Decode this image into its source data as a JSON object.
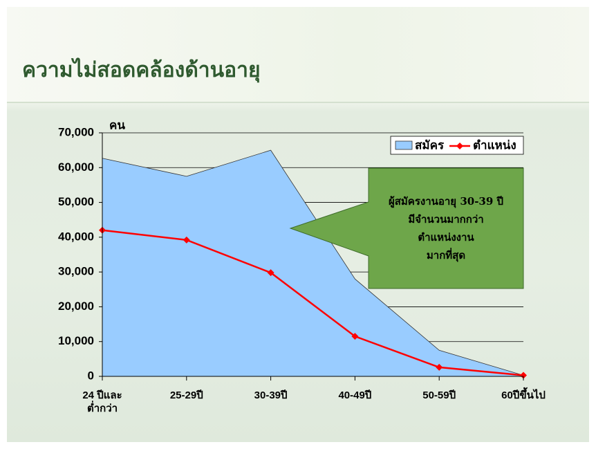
{
  "title": "ความไม่สอดคล้องด้านอายุ",
  "chart_data": {
    "type": "area-line",
    "y_axis_label": "คน",
    "categories": [
      "24 ปีและ\nต่ำกว่า",
      "25-29ปี",
      "30-39ปี",
      "40-49ปี",
      "50-59ปี",
      "60ปีขึ้นไป"
    ],
    "series": [
      {
        "name": "สมัคร",
        "type": "area",
        "color": "#99ccff",
        "values": [
          62700,
          57500,
          65000,
          28000,
          7500,
          300
        ]
      },
      {
        "name": "ตำแหน่ง",
        "type": "line",
        "color": "#ff0000",
        "values": [
          42000,
          39200,
          29800,
          11500,
          2600,
          300
        ]
      }
    ],
    "ylim": [
      0,
      70000
    ],
    "yticks": [
      0,
      {
        "value": 10000,
        "label": "10,000"
      },
      {
        "value": 20000,
        "label": "20,000"
      },
      {
        "value": 30000,
        "label": "30,000"
      },
      {
        "value": 40000,
        "label": "40,000"
      },
      {
        "value": 50000,
        "label": "50,000"
      },
      {
        "value": 60000,
        "label": "60,000"
      },
      {
        "value": 70000,
        "label": "70,000"
      }
    ],
    "grid": true,
    "legend": "top-right",
    "annotation": [
      "ผู้สมัครงานอายุ 30-39 ปี",
      "มีจำนวนมากกว่า",
      "ตำแหน่งงาน",
      "มากที่สุด"
    ]
  }
}
